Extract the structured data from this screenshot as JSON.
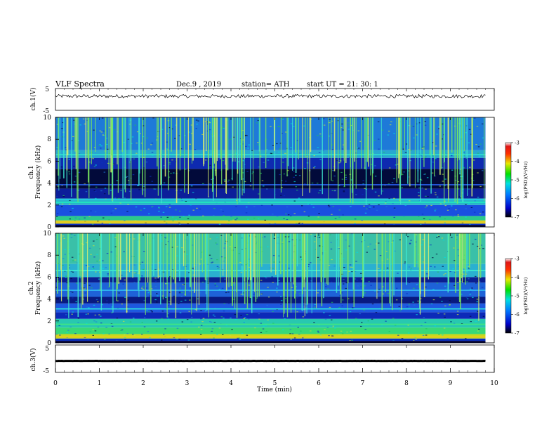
{
  "header": {
    "title": "VLF  Spectra",
    "date": "Dec.9  , 2019",
    "station": "station= ATH",
    "start_ut": "start  UT  =    21: 30: 1"
  },
  "chart_data": [
    {
      "type": "line",
      "panel": "ch1-waveform",
      "ylabel": "ch.1(V)",
      "ylim": [
        -5,
        5
      ],
      "yticks": [
        "5",
        "-5"
      ],
      "xlim": [
        0,
        10
      ],
      "series": [
        {
          "x": [
            0,
            9.8
          ],
          "values": [
            1.5,
            1.5
          ]
        }
      ]
    },
    {
      "type": "heatmap",
      "panel": "ch1-spectrogram",
      "ylabel_top": "ch.1",
      "ylabel": "Frequency  (kHz)",
      "ylim": [
        0,
        10
      ],
      "yticks": [
        "0",
        "2",
        "4",
        "6",
        "8",
        "10"
      ],
      "xlim": [
        0,
        10
      ],
      "data_xmax": 9.8,
      "colorbar": {
        "label": "log(PSD)(V²/Hz)",
        "range": [
          -7,
          -3
        ],
        "ticks": [
          "-3",
          "-4",
          "-5",
          "-6",
          "-7"
        ]
      },
      "bands": [
        {
          "from": 0.0,
          "to": 0.3,
          "color": "#0a2fbf"
        },
        {
          "from": 0.3,
          "to": 0.6,
          "color": "#d8c81e"
        },
        {
          "from": 0.6,
          "to": 1.0,
          "color": "#2bc98a"
        },
        {
          "from": 1.0,
          "to": 2.0,
          "color": "#1a4fe0"
        },
        {
          "from": 2.0,
          "to": 2.6,
          "color": "#28b4c8"
        },
        {
          "from": 2.6,
          "to": 3.5,
          "color": "#0c1f9a"
        },
        {
          "from": 3.5,
          "to": 5.3,
          "color": "#020a3a"
        },
        {
          "from": 5.3,
          "to": 6.3,
          "color": "#0e2ab0"
        },
        {
          "from": 6.3,
          "to": 7.0,
          "color": "#28a8d0"
        },
        {
          "from": 7.0,
          "to": 10.0,
          "color": "#1e7ad8"
        }
      ],
      "lines": [
        {
          "f": 0.45,
          "color": "#e8d020"
        },
        {
          "f": 2.25,
          "color": "#20f0c0"
        },
        {
          "f": 2.5,
          "color": "#20d0e8"
        },
        {
          "f": 6.6,
          "color": "#30e0d0"
        },
        {
          "f": 3.85,
          "color": "#2a60f0"
        }
      ]
    },
    {
      "type": "heatmap",
      "panel": "ch2-spectrogram",
      "ylabel_top": "ch.2",
      "ylabel": "Frequency  (kHz)",
      "ylim": [
        0,
        10
      ],
      "yticks": [
        "0",
        "2",
        "4",
        "6",
        "8",
        "10"
      ],
      "xlim": [
        0,
        10
      ],
      "data_xmax": 9.8,
      "colorbar": {
        "label": "log(PSD)(V²/Hz)",
        "range": [
          -7,
          -3
        ],
        "ticks": [
          "-3",
          "-4",
          "-5",
          "-6",
          "-7"
        ]
      },
      "bands": [
        {
          "from": 0.0,
          "to": 0.4,
          "color": "#0a2fbf"
        },
        {
          "from": 0.4,
          "to": 0.8,
          "color": "#c8d81e"
        },
        {
          "from": 0.8,
          "to": 1.4,
          "color": "#38d878"
        },
        {
          "from": 1.4,
          "to": 2.2,
          "color": "#28c8b0"
        },
        {
          "from": 2.2,
          "to": 2.8,
          "color": "#0c2ab8"
        },
        {
          "from": 2.8,
          "to": 3.6,
          "color": "#1e58e0"
        },
        {
          "from": 3.6,
          "to": 4.2,
          "color": "#081a80"
        },
        {
          "from": 4.2,
          "to": 5.5,
          "color": "#1e62d8"
        },
        {
          "from": 5.5,
          "to": 6.0,
          "color": "#0a1e90"
        },
        {
          "from": 6.0,
          "to": 7.2,
          "color": "#2ab0d0"
        },
        {
          "from": 7.2,
          "to": 10.0,
          "color": "#3ac0a8"
        }
      ],
      "lines": [
        {
          "f": 0.55,
          "color": "#f0c818"
        },
        {
          "f": 1.7,
          "color": "#40e880"
        },
        {
          "f": 3.1,
          "color": "#30e8e0"
        },
        {
          "f": 4.8,
          "color": "#30b8f0"
        },
        {
          "f": 6.6,
          "color": "#40f0d0"
        }
      ]
    },
    {
      "type": "line",
      "panel": "ch3-waveform",
      "ylabel": "ch.3(V)",
      "ylim": [
        -5,
        5
      ],
      "yticks": [
        "5",
        "-5"
      ],
      "xlim": [
        0,
        10
      ],
      "xlabel": "Time  (min)",
      "xticks": [
        "0",
        "1",
        "2",
        "3",
        "4",
        "5",
        "6",
        "7",
        "8",
        "9",
        "10"
      ],
      "series": [
        {
          "x": [
            0,
            9.8
          ],
          "values": [
            -0.8,
            -0.8
          ]
        }
      ]
    }
  ]
}
